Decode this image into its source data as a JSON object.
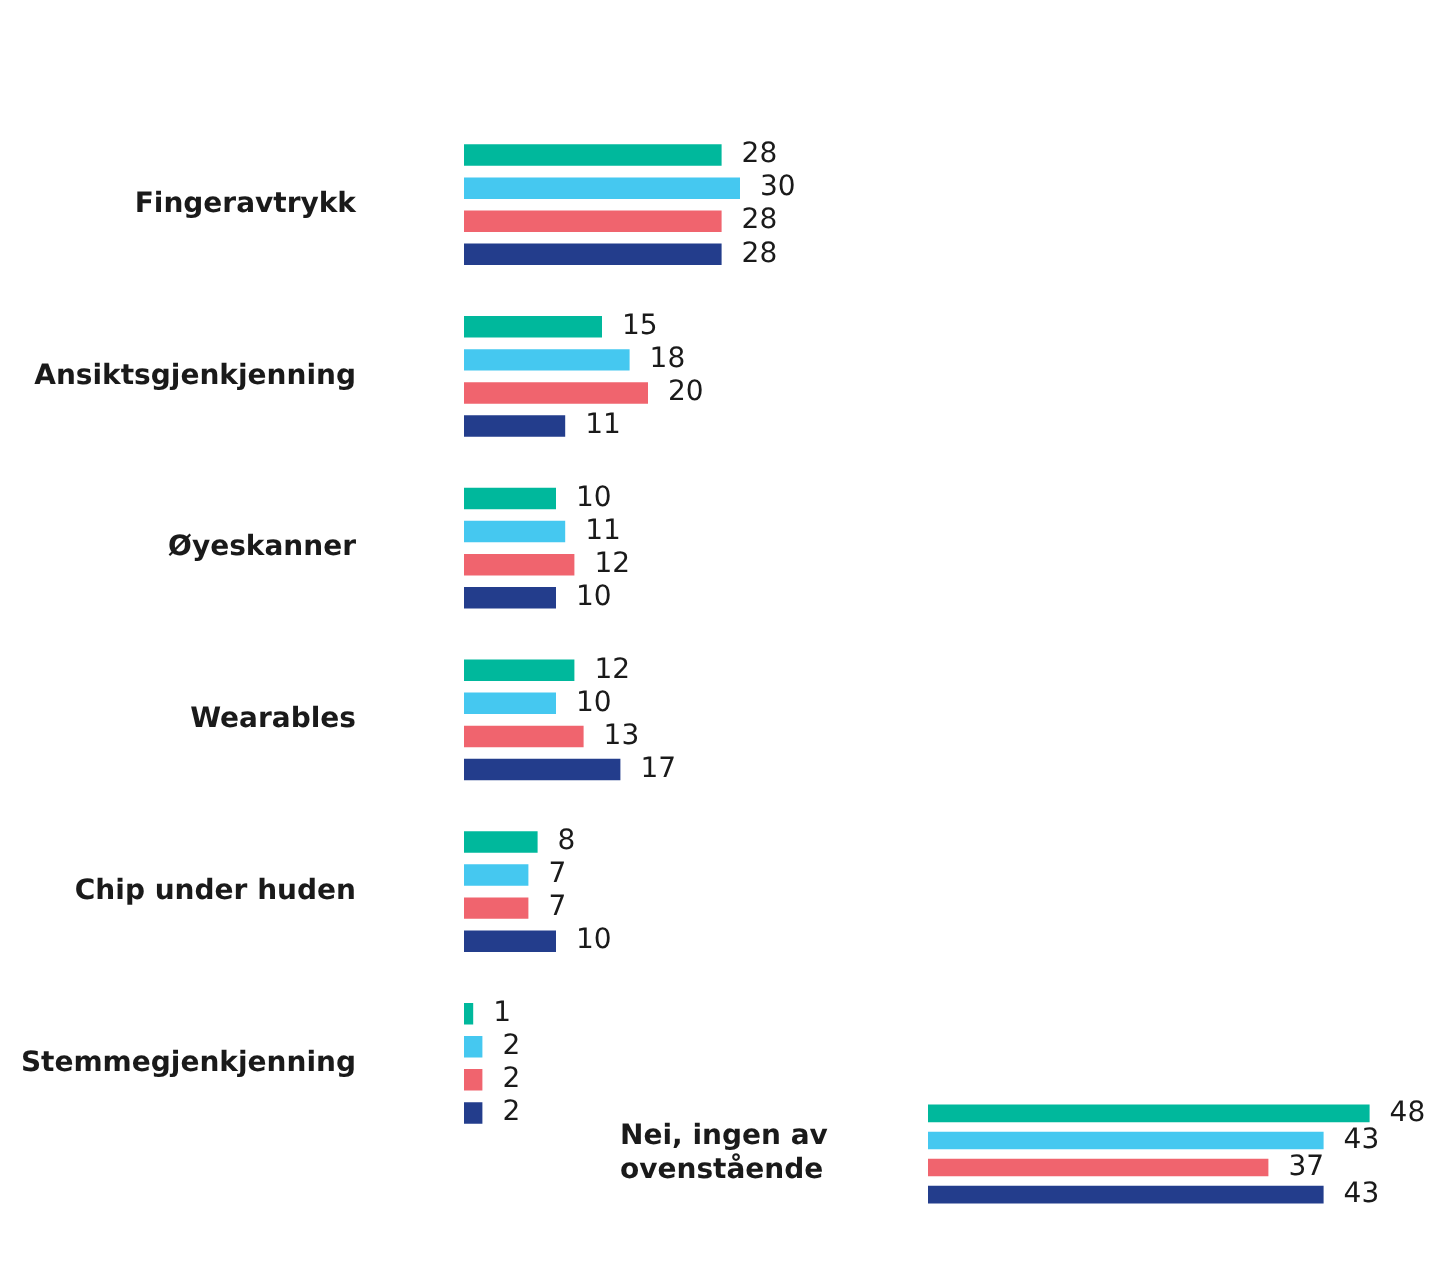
{
  "chart_data": [
    {
      "type": "bar",
      "orientation": "horizontal",
      "data_labels": true,
      "categories": [
        "Fingeravtrykk",
        "Ansiktsgjenkjenning",
        "Øyeskanner",
        "Wearables",
        "Chip under huden",
        "Stemmegjenkjenning"
      ],
      "series": [
        {
          "color": "#00b89c",
          "values": [
            28,
            15,
            10,
            12,
            8,
            1
          ]
        },
        {
          "color": "#45c8f0",
          "values": [
            30,
            18,
            11,
            10,
            7,
            2
          ]
        },
        {
          "color": "#f0646e",
          "values": [
            28,
            20,
            12,
            13,
            7,
            2
          ]
        },
        {
          "color": "#233d8c",
          "values": [
            28,
            11,
            10,
            17,
            10,
            2
          ]
        }
      ]
    },
    {
      "type": "bar",
      "orientation": "horizontal",
      "data_labels": true,
      "categories": [
        "Nei, ingen av ovenstående"
      ],
      "series": [
        {
          "color": "#00b89c",
          "values": [
            48
          ]
        },
        {
          "color": "#45c8f0",
          "values": [
            43
          ]
        },
        {
          "color": "#f0646e",
          "values": [
            37
          ]
        },
        {
          "color": "#233d8c",
          "values": [
            43
          ]
        }
      ]
    }
  ]
}
